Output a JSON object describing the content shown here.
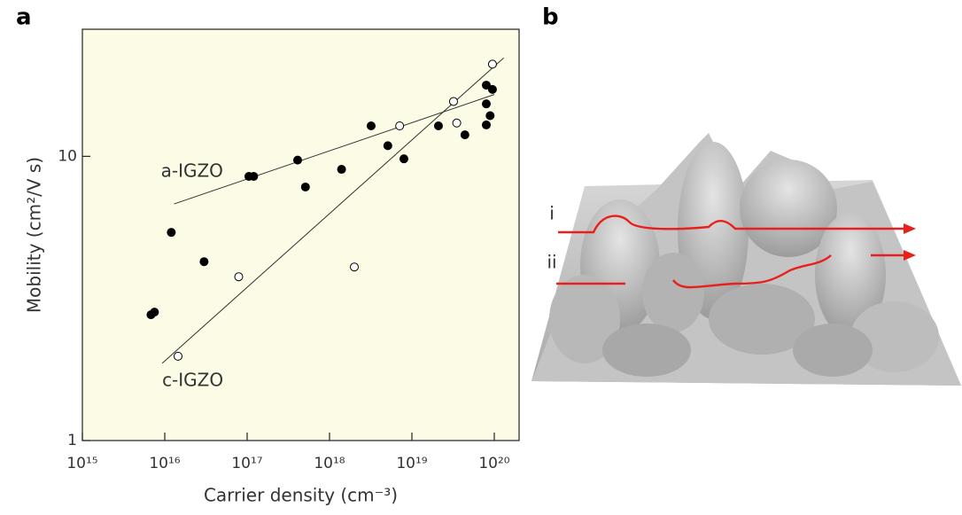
{
  "chart_data": {
    "type": "scatter",
    "panel_label": "a",
    "xlabel": "Carrier density (cm⁻³)",
    "ylabel": "Mobility (cm²/V s)",
    "xscale": "log",
    "yscale": "log",
    "xlim": [
      1000000000000000.0,
      2e+20
    ],
    "ylim": [
      1,
      28
    ],
    "xticks": [
      {
        "value": 1000000000000000.0,
        "label": "10¹⁵"
      },
      {
        "value": 1e+16,
        "label": "10¹⁶"
      },
      {
        "value": 1e+17,
        "label": "10¹⁷"
      },
      {
        "value": 1e+18,
        "label": "10¹⁸"
      },
      {
        "value": 1e+19,
        "label": "10¹⁹"
      },
      {
        "value": 1e+20,
        "label": "10²⁰"
      }
    ],
    "yticks": [
      1,
      10
    ],
    "background": "#fbfbe6",
    "series": [
      {
        "color": "#000000",
        "edgecolor": "#000000",
        "x": [
          6800000000000000.0,
          7500000000000000.0,
          1.2e+16,
          3e+16,
          1.05e+17,
          1.2e+17,
          4.1e+17,
          5.1e+17,
          1.4e+18,
          3.2e+18,
          5.1e+18,
          8e+18,
          2.1e+19,
          4.4e+19,
          8e+19,
          8e+19,
          8.9e+19,
          9.5e+19,
          8e+19
        ],
        "values": [
          2.77,
          2.83,
          5.4,
          4.26,
          8.5,
          8.5,
          9.7,
          7.8,
          9.0,
          12.8,
          10.9,
          9.8,
          12.8,
          11.9,
          17.8,
          15.3,
          13.9,
          17.2,
          12.9
        ]
      },
      {
        "color": "#ffffff",
        "edgecolor": "#000000",
        "x": [
          1.45e+16,
          7.9e+16,
          2e+18,
          7.1e+18,
          3.2e+19,
          3.5e+19,
          9.5e+19
        ],
        "values": [
          1.98,
          3.77,
          4.08,
          12.8,
          15.6,
          13.1,
          21.1
        ]
      }
    ],
    "lines": [
      {
        "label": "a-IGZO",
        "x": [
          1.3e+16,
          1e+20
        ],
        "y": [
          6.8,
          16.5
        ]
      },
      {
        "label": "c-IGZO",
        "x": [
          9300000000000000.0,
          1.3e+20
        ],
        "y": [
          1.87,
          22.2
        ]
      }
    ]
  },
  "diagram": {
    "panel_label": "b",
    "paths": [
      {
        "label": "i",
        "color": "#e8201c"
      },
      {
        "label": "ii",
        "color": "#e8201c"
      }
    ]
  }
}
